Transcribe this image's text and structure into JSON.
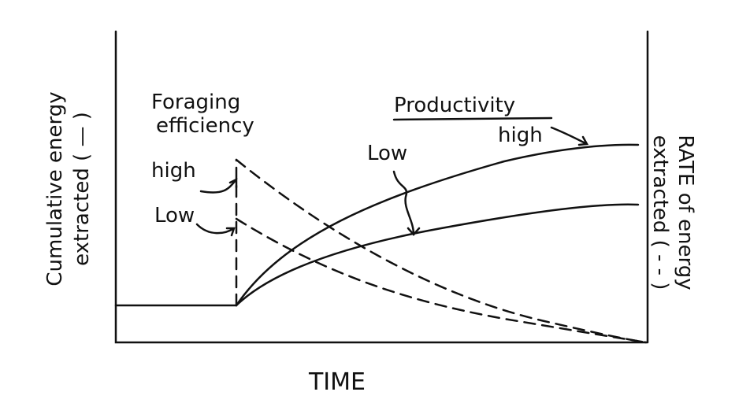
{
  "y_axis_left": {
    "lines": [
      "Cumulative energy",
      "extracted ( — )"
    ]
  },
  "y_axis_right": {
    "lines": [
      "RATE of energy",
      "extracted ( - - )"
    ]
  },
  "x_axis": {
    "label": "TIME"
  },
  "foraging_efficiency": {
    "title_lines": [
      "Foraging",
      "efficiency"
    ],
    "high": "high",
    "low": "Low"
  },
  "productivity": {
    "title": "Productivity",
    "high": "high",
    "low": "Low"
  }
}
